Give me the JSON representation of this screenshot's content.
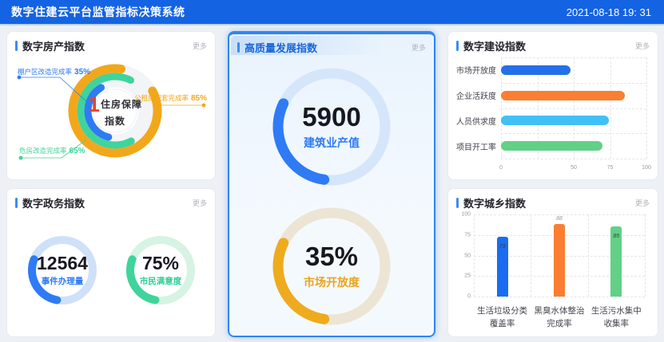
{
  "header": {
    "title": "数字住建云平台监管指标决策系统",
    "datetime": "2021-08-18 19: 31"
  },
  "more_label": "更多",
  "panels": {
    "realestate": {
      "title": "数字房产指数",
      "donut": {
        "center_value": "1",
        "center_label_line1": "住房保障",
        "center_label_line2": "指数",
        "rings": [
          {
            "name": "公租房配套完成率",
            "value": 85,
            "display": "85%",
            "color": "#f2a71b"
          },
          {
            "name": "危房改造完成率",
            "value": 65,
            "display": "65%",
            "color": "#3fd49c"
          },
          {
            "name": "棚户区改造完成率",
            "value": 35,
            "display": "35%",
            "color": "#2e7bf5"
          }
        ]
      }
    },
    "government": {
      "title": "数字政务指数",
      "gauges": [
        {
          "value": "12564",
          "label": "事件办理量",
          "color": "#2e7bf5",
          "track": "#cfe1f8"
        },
        {
          "value": "75%",
          "label": "市民满意度",
          "color": "#3fd49c",
          "track": "#d6f3e4"
        }
      ]
    },
    "development": {
      "title": "高质量发展指数",
      "selected": true,
      "gauges": [
        {
          "value": "5900",
          "label": "建筑业产值",
          "color": "#2e7bf5",
          "track": "#d5e6fa"
        },
        {
          "value": "35%",
          "label": "市场开放度",
          "color": "#eeab1e",
          "track": "#ece5d4"
        }
      ]
    },
    "construction": {
      "title": "数字建设指数",
      "chart_data": {
        "type": "bar",
        "orientation": "horizontal",
        "categories": [
          "市场开放度",
          "企业活跃度",
          "人员供求度",
          "项目开工率"
        ],
        "values": [
          48,
          85,
          74,
          70
        ],
        "colors": [
          "#2470e8",
          "#fb7e32",
          "#41c0f5",
          "#62d086"
        ],
        "xlim": [
          0,
          100
        ],
        "x_ticks": [
          "0",
          "50",
          "75",
          "100"
        ],
        "grid": "dashed"
      }
    },
    "urban": {
      "title": "数字城乡指数",
      "chart_data": {
        "type": "bar",
        "orientation": "vertical",
        "categories": [
          "生活垃圾分类覆盖率",
          "黑臭水体整治完成率",
          "生活污水集中收集率"
        ],
        "categories_wrapped": [
          [
            "生活垃圾分类",
            "覆盖率"
          ],
          [
            "黑臭水体整治",
            "完成率"
          ],
          [
            "生活污水集中",
            "收集率"
          ]
        ],
        "values": [
          73,
          88,
          85
        ],
        "colors": [
          "#1a6df0",
          "#fb7e32",
          "#62d086"
        ],
        "ylim": [
          0,
          100
        ],
        "y_ticks": [
          "100",
          "75",
          "50",
          "25",
          "0"
        ],
        "grid": "dashed"
      }
    }
  },
  "colors": {
    "header_bg": "#1463e3",
    "page_bg": "#edf0f5",
    "accent_blue": "#2e7bf5",
    "green": "#3fd49c",
    "orange": "#f2a71b",
    "red": "#e8432b",
    "selected_border": "#2f86f3"
  }
}
